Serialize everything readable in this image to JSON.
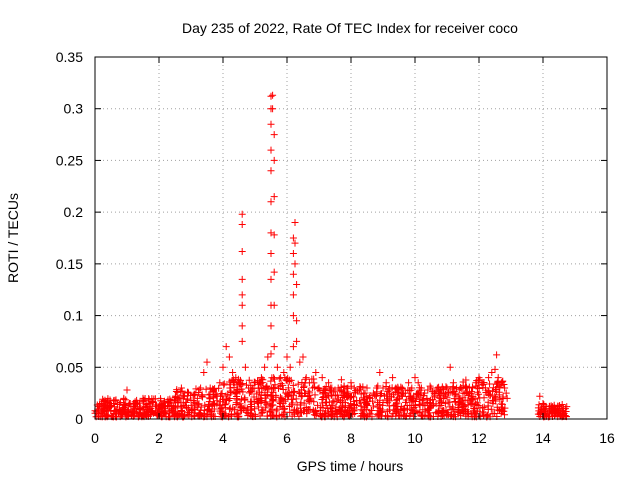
{
  "chart_data": {
    "type": "scatter",
    "title": "Day 235 of 2022, Rate Of TEC Index for receiver coco",
    "xlabel": "GPS time / hours",
    "ylabel": "ROTI / TECUs",
    "xlim": [
      0,
      16
    ],
    "ylim": [
      0,
      0.35
    ],
    "grid": true,
    "marker": "plus",
    "color": "#ff0000",
    "x_ticks": [
      0,
      2,
      4,
      6,
      8,
      10,
      12,
      14,
      16
    ],
    "x_tick_labels": [
      "0",
      "2",
      "4",
      "6",
      "8",
      "10",
      "12",
      "14",
      "16"
    ],
    "y_ticks": [
      0,
      0.05,
      0.1,
      0.15,
      0.2,
      0.25,
      0.3,
      0.35
    ],
    "y_tick_labels": [
      "0",
      "0.05",
      "0.1",
      "0.15",
      "0.2",
      "0.25",
      "0.3",
      "0.35"
    ],
    "series": [
      {
        "name": "ROTI",
        "points": [
          [
            0.0,
            0.008
          ],
          [
            0.1,
            0.012
          ],
          [
            0.2,
            0.015
          ],
          [
            0.3,
            0.01
          ],
          [
            0.4,
            0.016
          ],
          [
            0.5,
            0.012
          ],
          [
            0.6,
            0.018
          ],
          [
            0.7,
            0.014
          ],
          [
            0.8,
            0.016
          ],
          [
            0.9,
            0.02
          ],
          [
            1.0,
            0.028
          ],
          [
            1.1,
            0.015
          ],
          [
            1.2,
            0.012
          ],
          [
            1.3,
            0.018
          ],
          [
            1.4,
            0.01
          ],
          [
            1.5,
            0.02
          ],
          [
            1.6,
            0.014
          ],
          [
            1.7,
            0.012
          ],
          [
            1.8,
            0.016
          ],
          [
            1.9,
            0.012
          ],
          [
            2.0,
            0.01
          ],
          [
            2.1,
            0.014
          ],
          [
            2.2,
            0.012
          ],
          [
            2.3,
            0.016
          ],
          [
            2.4,
            0.01
          ],
          [
            2.5,
            0.018
          ],
          [
            2.6,
            0.02
          ],
          [
            2.7,
            0.03
          ],
          [
            2.8,
            0.022
          ],
          [
            2.9,
            0.026
          ],
          [
            3.0,
            0.018
          ],
          [
            3.1,
            0.024
          ],
          [
            3.2,
            0.02
          ],
          [
            3.3,
            0.03
          ],
          [
            3.4,
            0.045
          ],
          [
            3.5,
            0.055
          ],
          [
            3.6,
            0.03
          ],
          [
            3.7,
            0.026
          ],
          [
            3.8,
            0.022
          ],
          [
            3.9,
            0.035
          ],
          [
            4.0,
            0.05
          ],
          [
            4.1,
            0.07
          ],
          [
            4.2,
            0.06
          ],
          [
            4.3,
            0.045
          ],
          [
            4.4,
            0.04
          ],
          [
            4.5,
            0.035
          ],
          [
            4.6,
            0.075
          ],
          [
            4.6,
            0.09
          ],
          [
            4.6,
            0.11
          ],
          [
            4.6,
            0.12
          ],
          [
            4.6,
            0.135
          ],
          [
            4.6,
            0.162
          ],
          [
            4.6,
            0.188
          ],
          [
            4.6,
            0.198
          ],
          [
            4.7,
            0.05
          ],
          [
            4.8,
            0.03
          ],
          [
            4.9,
            0.028
          ],
          [
            5.0,
            0.035
          ],
          [
            5.1,
            0.03
          ],
          [
            5.2,
            0.04
          ],
          [
            5.3,
            0.05
          ],
          [
            5.4,
            0.06
          ],
          [
            5.5,
            0.063
          ],
          [
            5.5,
            0.09
          ],
          [
            5.5,
            0.11
          ],
          [
            5.5,
            0.135
          ],
          [
            5.5,
            0.16
          ],
          [
            5.5,
            0.18
          ],
          [
            5.5,
            0.21
          ],
          [
            5.5,
            0.24
          ],
          [
            5.5,
            0.26
          ],
          [
            5.5,
            0.285
          ],
          [
            5.5,
            0.3
          ],
          [
            5.5,
            0.312
          ],
          [
            5.55,
            0.313
          ],
          [
            5.55,
            0.3
          ],
          [
            5.6,
            0.275
          ],
          [
            5.6,
            0.25
          ],
          [
            5.6,
            0.215
          ],
          [
            5.6,
            0.178
          ],
          [
            5.6,
            0.142
          ],
          [
            5.6,
            0.11
          ],
          [
            5.6,
            0.07
          ],
          [
            5.7,
            0.05
          ],
          [
            5.8,
            0.04
          ],
          [
            5.9,
            0.045
          ],
          [
            6.0,
            0.06
          ],
          [
            6.1,
            0.05
          ],
          [
            6.2,
            0.07
          ],
          [
            6.2,
            0.1
          ],
          [
            6.2,
            0.12
          ],
          [
            6.2,
            0.14
          ],
          [
            6.2,
            0.16
          ],
          [
            6.2,
            0.175
          ],
          [
            6.25,
            0.19
          ],
          [
            6.25,
            0.17
          ],
          [
            6.25,
            0.15
          ],
          [
            6.3,
            0.13
          ],
          [
            6.3,
            0.095
          ],
          [
            6.3,
            0.075
          ],
          [
            6.4,
            0.055
          ],
          [
            6.5,
            0.06
          ],
          [
            6.6,
            0.04
          ],
          [
            6.7,
            0.035
          ],
          [
            6.8,
            0.03
          ],
          [
            6.9,
            0.045
          ],
          [
            7.0,
            0.03
          ],
          [
            7.1,
            0.04
          ],
          [
            7.2,
            0.025
          ],
          [
            7.3,
            0.035
          ],
          [
            7.4,
            0.03
          ],
          [
            7.5,
            0.028
          ],
          [
            7.6,
            0.03
          ],
          [
            7.7,
            0.038
          ],
          [
            7.8,
            0.025
          ],
          [
            7.9,
            0.03
          ],
          [
            8.0,
            0.035
          ],
          [
            8.1,
            0.03
          ],
          [
            8.2,
            0.027
          ],
          [
            8.3,
            0.03
          ],
          [
            8.4,
            0.025
          ],
          [
            8.5,
            0.03
          ],
          [
            8.6,
            0.02
          ],
          [
            8.7,
            0.025
          ],
          [
            8.8,
            0.03
          ],
          [
            8.9,
            0.045
          ],
          [
            9.0,
            0.03
          ],
          [
            9.1,
            0.035
          ],
          [
            9.2,
            0.025
          ],
          [
            9.3,
            0.04
          ],
          [
            9.4,
            0.03
          ],
          [
            9.5,
            0.028
          ],
          [
            9.6,
            0.03
          ],
          [
            9.7,
            0.025
          ],
          [
            9.8,
            0.035
          ],
          [
            9.9,
            0.03
          ],
          [
            10.0,
            0.04
          ],
          [
            10.1,
            0.035
          ],
          [
            10.2,
            0.03
          ],
          [
            10.3,
            0.025
          ],
          [
            10.4,
            0.028
          ],
          [
            10.5,
            0.03
          ],
          [
            10.6,
            0.025
          ],
          [
            10.7,
            0.03
          ],
          [
            10.8,
            0.02
          ],
          [
            10.9,
            0.025
          ],
          [
            11.0,
            0.03
          ],
          [
            11.1,
            0.05
          ],
          [
            11.2,
            0.035
          ],
          [
            11.3,
            0.03
          ],
          [
            11.4,
            0.02
          ],
          [
            11.5,
            0.025
          ],
          [
            11.6,
            0.03
          ],
          [
            11.7,
            0.025
          ],
          [
            11.8,
            0.03
          ],
          [
            11.9,
            0.035
          ],
          [
            12.0,
            0.04
          ],
          [
            12.1,
            0.035
          ],
          [
            12.2,
            0.03
          ],
          [
            12.3,
            0.04
          ],
          [
            12.4,
            0.045
          ],
          [
            12.5,
            0.048
          ],
          [
            12.55,
            0.062
          ],
          [
            12.6,
            0.04
          ],
          [
            12.7,
            0.035
          ],
          [
            12.8,
            0.03
          ],
          [
            12.85,
            0.025
          ],
          [
            13.9,
            0.022
          ],
          [
            14.0,
            0.015
          ],
          [
            14.1,
            0.012
          ],
          [
            14.2,
            0.01
          ],
          [
            14.3,
            0.012
          ],
          [
            14.4,
            0.01
          ],
          [
            14.5,
            0.012
          ],
          [
            14.6,
            0.014
          ],
          [
            14.7,
            0.01
          ]
        ]
      }
    ],
    "dense_band": {
      "segments": [
        {
          "x_start": 0.0,
          "x_end": 2.5,
          "max": 0.02
        },
        {
          "x_start": 2.5,
          "x_end": 4.0,
          "max": 0.03
        },
        {
          "x_start": 4.0,
          "x_end": 7.0,
          "max": 0.04
        },
        {
          "x_start": 7.0,
          "x_end": 11.5,
          "max": 0.032
        },
        {
          "x_start": 11.5,
          "x_end": 12.9,
          "max": 0.038
        },
        {
          "x_start": 13.85,
          "x_end": 14.75,
          "max": 0.014
        }
      ],
      "min": 0.002,
      "count": 1400,
      "seed": 235
    }
  }
}
